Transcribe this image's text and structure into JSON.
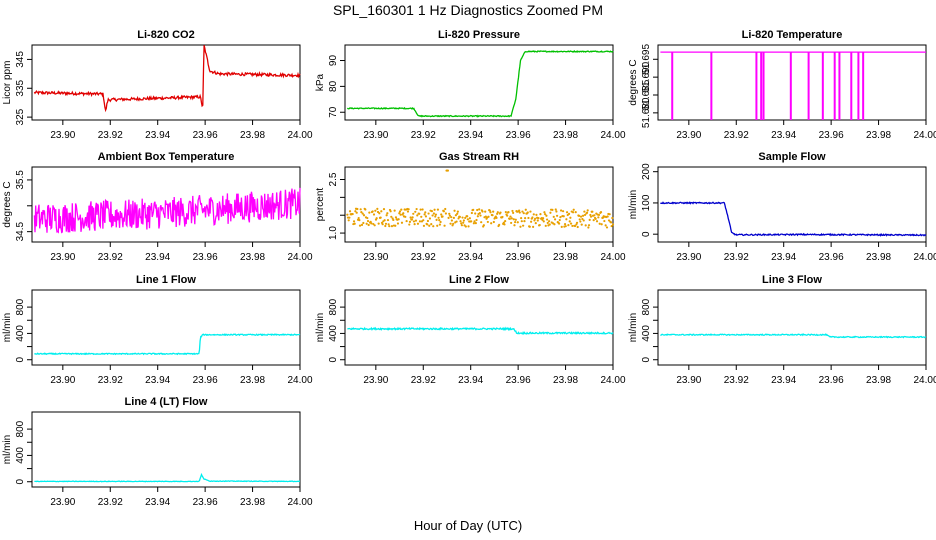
{
  "title": "SPL_160301  1 Hz Diagnostics Zoomed PM",
  "xlabel": "Hour of Day (UTC)",
  "chart_data": [
    {
      "type": "line",
      "title": "Li-820 CO2",
      "ylabel": "Licor ppm",
      "xlim": [
        23.887,
        24.0
      ],
      "ylim": [
        324,
        350
      ],
      "yticks": [
        325,
        335,
        345
      ],
      "ytick_labels": [
        "325",
        "335",
        "345"
      ],
      "color": "#e00000",
      "segments": [
        [
          23.888,
          333.5
        ],
        [
          23.917,
          333
        ],
        [
          23.918,
          327
        ],
        [
          23.919,
          331
        ],
        [
          23.958,
          332
        ],
        [
          23.959,
          328
        ],
        [
          23.9595,
          350
        ],
        [
          23.962,
          341
        ],
        [
          23.966,
          340
        ],
        [
          24.0,
          339.5
        ]
      ],
      "noise": 0.5,
      "xticks": [
        23.9,
        23.92,
        23.94,
        23.96,
        23.98,
        24.0
      ],
      "xtick_labels": [
        "23.90",
        "23.92",
        "23.94",
        "23.96",
        "23.98",
        "24.00"
      ]
    },
    {
      "type": "line",
      "title": "Li-820 Pressure",
      "ylabel": "kPa",
      "xlim": [
        23.887,
        24.0
      ],
      "ylim": [
        67,
        96
      ],
      "yticks": [
        70,
        80,
        90
      ],
      "ytick_labels": [
        "70",
        "80",
        "90"
      ],
      "color": "#00c000",
      "segments": [
        [
          23.888,
          71.5
        ],
        [
          23.916,
          71.5
        ],
        [
          23.918,
          68.5
        ],
        [
          23.957,
          68.5
        ],
        [
          23.959,
          75
        ],
        [
          23.961,
          90
        ],
        [
          23.963,
          93.5
        ],
        [
          24.0,
          93.5
        ]
      ],
      "noise": 0.2,
      "xticks": [
        23.9,
        23.92,
        23.94,
        23.96,
        23.98,
        24.0
      ],
      "xtick_labels": [
        "23.90",
        "23.92",
        "23.94",
        "23.96",
        "23.98",
        "24.00"
      ]
    },
    {
      "type": "line",
      "title": "Li-820 Temperature",
      "ylabel": "degrees C",
      "xlim": [
        23.887,
        24.0
      ],
      "ylim": [
        51.678,
        51.699
      ],
      "yticks": [
        51.68,
        51.685,
        51.69,
        51.695
      ],
      "ytick_labels": [
        "51.680",
        "51.685",
        "51.690",
        "51.695"
      ],
      "color": "#ff00ff",
      "segments": [
        [
          23.888,
          51.697
        ],
        [
          24.0,
          51.697
        ]
      ],
      "noise": 0,
      "spikes": [
        23.893,
        23.9095,
        23.9285,
        23.9305,
        23.9315,
        23.943,
        23.9505,
        23.9565,
        23.9615,
        23.9635,
        23.9685,
        23.9715,
        23.9735
      ],
      "spike_low": 51.678,
      "xticks": [
        23.9,
        23.92,
        23.94,
        23.96,
        23.98,
        24.0
      ],
      "xtick_labels": [
        "23.90",
        "23.92",
        "23.94",
        "23.96",
        "23.98",
        "24.00"
      ]
    },
    {
      "type": "line",
      "title": "Ambient Box Temperature",
      "ylabel": "degrees C",
      "xlim": [
        23.887,
        24.0
      ],
      "ylim": [
        34.3,
        35.75
      ],
      "yticks": [
        34.5,
        35.0,
        35.5
      ],
      "ytick_labels": [
        "34.5",
        "",
        "35.5"
      ],
      "color": "#ff00ff",
      "segments": [
        [
          23.888,
          34.75
        ],
        [
          23.94,
          34.85
        ],
        [
          24.0,
          35.05
        ]
      ],
      "noise": 0.3,
      "xticks": [
        23.9,
        23.92,
        23.94,
        23.96,
        23.98,
        24.0
      ],
      "xtick_labels": [
        "23.90",
        "23.92",
        "23.94",
        "23.96",
        "23.98",
        "24.00"
      ]
    },
    {
      "type": "scatter",
      "title": "Gas Stream RH",
      "ylabel": "percent",
      "xlim": [
        23.887,
        24.0
      ],
      "ylim": [
        0.75,
        2.85
      ],
      "yticks": [
        1.0,
        1.5,
        2.0,
        2.5
      ],
      "ytick_labels": [
        "1.0",
        "",
        "",
        "2.5"
      ],
      "color": "#e8a000",
      "segments": [
        [
          23.888,
          1.45
        ],
        [
          24.0,
          1.4
        ]
      ],
      "noise": 0.25,
      "xticks": [
        23.9,
        23.92,
        23.94,
        23.96,
        23.98,
        24.0
      ],
      "xtick_labels": [
        "23.90",
        "23.92",
        "23.94",
        "23.96",
        "23.98",
        "24.00"
      ]
    },
    {
      "type": "line",
      "title": "Sample Flow",
      "ylabel": "ml/min",
      "xlim": [
        23.887,
        24.0
      ],
      "ylim": [
        -25,
        215
      ],
      "yticks": [
        0,
        100,
        200
      ],
      "ytick_labels": [
        "0",
        "100",
        "200"
      ],
      "color": "#0000cc",
      "segments": [
        [
          23.888,
          100
        ],
        [
          23.915,
          100
        ],
        [
          23.917,
          40
        ],
        [
          23.918,
          5
        ],
        [
          23.92,
          -2
        ],
        [
          23.95,
          -1
        ],
        [
          24.0,
          -3
        ]
      ],
      "noise": 2,
      "xticks": [
        23.9,
        23.92,
        23.94,
        23.96,
        23.98,
        24.0
      ],
      "xtick_labels": [
        "23.90",
        "23.92",
        "23.94",
        "23.96",
        "23.98",
        "24.00"
      ]
    },
    {
      "type": "line",
      "title": "Line 1 Flow",
      "ylabel": "ml/min",
      "xlim": [
        23.887,
        24.0
      ],
      "ylim": [
        -80,
        1060
      ],
      "yticks": [
        0,
        200,
        400,
        600,
        800
      ],
      "ytick_labels": [
        "0",
        "",
        "400",
        "",
        "800"
      ],
      "color": "#00eeee",
      "segments": [
        [
          23.888,
          90
        ],
        [
          23.9575,
          90
        ],
        [
          23.958,
          340
        ],
        [
          23.959,
          380
        ],
        [
          24.0,
          380
        ]
      ],
      "noise": 8,
      "xticks": [
        23.9,
        23.92,
        23.94,
        23.96,
        23.98,
        24.0
      ],
      "xtick_labels": [
        "23.90",
        "23.92",
        "23.94",
        "23.96",
        "23.98",
        "24.00"
      ]
    },
    {
      "type": "line",
      "title": "Line 2 Flow",
      "ylabel": "ml/min",
      "xlim": [
        23.887,
        24.0
      ],
      "ylim": [
        -80,
        1060
      ],
      "yticks": [
        0,
        200,
        400,
        600,
        800
      ],
      "ytick_labels": [
        "0",
        "",
        "400",
        "",
        "800"
      ],
      "color": "#00eeee",
      "segments": [
        [
          23.888,
          470
        ],
        [
          23.958,
          470
        ],
        [
          23.9595,
          405
        ],
        [
          24.0,
          405
        ]
      ],
      "noise": 12,
      "xticks": [
        23.9,
        23.92,
        23.94,
        23.96,
        23.98,
        24.0
      ],
      "xtick_labels": [
        "23.90",
        "23.92",
        "23.94",
        "23.96",
        "23.98",
        "24.00"
      ]
    },
    {
      "type": "line",
      "title": "Line 3 Flow",
      "ylabel": "ml/min",
      "xlim": [
        23.887,
        24.0
      ],
      "ylim": [
        -80,
        1060
      ],
      "yticks": [
        0,
        200,
        400,
        600,
        800
      ],
      "ytick_labels": [
        "0",
        "",
        "400",
        "",
        "800"
      ],
      "color": "#00eeee",
      "segments": [
        [
          23.888,
          380
        ],
        [
          23.958,
          380
        ],
        [
          23.9595,
          345
        ],
        [
          24.0,
          345
        ]
      ],
      "noise": 8,
      "xticks": [
        23.9,
        23.92,
        23.94,
        23.96,
        23.98,
        24.0
      ],
      "xtick_labels": [
        "23.90",
        "23.92",
        "23.94",
        "23.96",
        "23.98",
        "24.00"
      ]
    },
    {
      "type": "line",
      "title": "Line 4 (LT) Flow",
      "ylabel": "ml/min",
      "xlim": [
        23.887,
        24.0
      ],
      "ylim": [
        -80,
        1060
      ],
      "yticks": [
        0,
        200,
        400,
        600,
        800
      ],
      "ytick_labels": [
        "0",
        "",
        "400",
        "",
        "800"
      ],
      "color": "#00eeee",
      "segments": [
        [
          23.888,
          5
        ],
        [
          23.9575,
          5
        ],
        [
          23.9585,
          110
        ],
        [
          23.9595,
          40
        ],
        [
          23.962,
          10
        ],
        [
          24.0,
          5
        ]
      ],
      "noise": 4,
      "xticks": [
        23.9,
        23.92,
        23.94,
        23.96,
        23.98,
        24.0
      ],
      "xtick_labels": [
        "23.90",
        "23.92",
        "23.94",
        "23.96",
        "23.98",
        "24.00"
      ]
    }
  ]
}
